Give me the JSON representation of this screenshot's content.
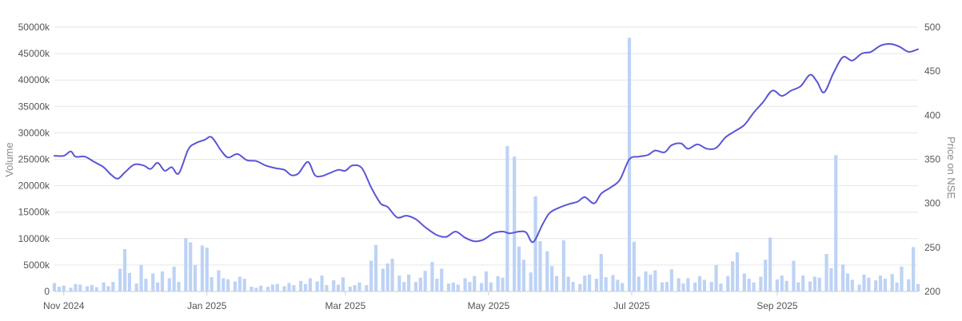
{
  "chart_data": {
    "type": "bar",
    "title": "",
    "xlabel": "",
    "ylabel": "Volume",
    "y2label": "Price on NSE",
    "grid": true,
    "legend": "none",
    "x_range": [
      "2024-10-28",
      "2025-10-31"
    ],
    "y_left": {
      "range": [
        0,
        50000
      ],
      "unit": "k",
      "ticks": [
        "0",
        "5000k",
        "10000k",
        "15000k",
        "20000k",
        "25000k",
        "30000k",
        "35000k",
        "40000k",
        "45000k",
        "50000k"
      ]
    },
    "y_right": {
      "range": [
        200,
        500
      ],
      "ticks": [
        "200",
        "250",
        "300",
        "350",
        "400",
        "450",
        "500"
      ]
    },
    "x_ticks": [
      {
        "date": "2024-11-01",
        "label": "Nov 2024"
      },
      {
        "date": "2025-01-01",
        "label": "Jan 2025"
      },
      {
        "date": "2025-03-01",
        "label": "Mar 2025"
      },
      {
        "date": "2025-05-01",
        "label": "May 2025"
      },
      {
        "date": "2025-07-01",
        "label": "Jul 2025"
      },
      {
        "date": "2025-09-01",
        "label": "Sep 2025"
      }
    ],
    "colors": {
      "volume": "#bdd3f5",
      "price": "#5b55d6",
      "grid": "#e6e6e6",
      "axis": "#cccccc"
    },
    "series": [
      {
        "name": "Volume",
        "axis": "left",
        "kind": "bar",
        "points": [
          [
            "2024-10-28",
            1600
          ],
          [
            "2024-10-30",
            900
          ],
          [
            "2024-11-01",
            1100
          ],
          [
            "2024-11-04",
            700
          ],
          [
            "2024-11-06",
            1400
          ],
          [
            "2024-11-08",
            1300
          ],
          [
            "2024-11-11",
            1000
          ],
          [
            "2024-11-13",
            1200
          ],
          [
            "2024-11-15",
            800
          ],
          [
            "2024-11-18",
            1700
          ],
          [
            "2024-11-20",
            1000
          ],
          [
            "2024-11-22",
            1800
          ],
          [
            "2024-11-25",
            4300
          ],
          [
            "2024-11-27",
            8000
          ],
          [
            "2024-11-29",
            3500
          ],
          [
            "2024-12-02",
            1500
          ],
          [
            "2024-12-04",
            5000
          ],
          [
            "2024-12-06",
            2400
          ],
          [
            "2024-12-09",
            3400
          ],
          [
            "2024-12-11",
            1700
          ],
          [
            "2024-12-13",
            3800
          ],
          [
            "2024-12-16",
            2500
          ],
          [
            "2024-12-18",
            4700
          ],
          [
            "2024-12-20",
            1800
          ],
          [
            "2024-12-23",
            10100
          ],
          [
            "2024-12-25",
            9300
          ],
          [
            "2024-12-27",
            5000
          ],
          [
            "2024-12-30",
            8700
          ],
          [
            "2025-01-01",
            8300
          ],
          [
            "2025-01-03",
            2700
          ],
          [
            "2025-01-06",
            4000
          ],
          [
            "2025-01-08",
            2500
          ],
          [
            "2025-01-10",
            2300
          ],
          [
            "2025-01-13",
            1900
          ],
          [
            "2025-01-15",
            2800
          ],
          [
            "2025-01-17",
            2400
          ],
          [
            "2025-01-20",
            900
          ],
          [
            "2025-01-22",
            700
          ],
          [
            "2025-01-24",
            1100
          ],
          [
            "2025-01-27",
            900
          ],
          [
            "2025-01-29",
            1300
          ],
          [
            "2025-01-31",
            1400
          ],
          [
            "2025-02-03",
            1000
          ],
          [
            "2025-02-05",
            1600
          ],
          [
            "2025-02-07",
            1200
          ],
          [
            "2025-02-10",
            2000
          ],
          [
            "2025-02-12",
            1400
          ],
          [
            "2025-02-14",
            2500
          ],
          [
            "2025-02-17",
            1900
          ],
          [
            "2025-02-19",
            3000
          ],
          [
            "2025-02-21",
            1200
          ],
          [
            "2025-02-24",
            2100
          ],
          [
            "2025-02-26",
            1300
          ],
          [
            "2025-02-28",
            2700
          ],
          [
            "2025-03-03",
            900
          ],
          [
            "2025-03-05",
            1200
          ],
          [
            "2025-03-07",
            1700
          ],
          [
            "2025-03-10",
            1200
          ],
          [
            "2025-03-12",
            5800
          ],
          [
            "2025-03-14",
            8800
          ],
          [
            "2025-03-17",
            4300
          ],
          [
            "2025-03-19",
            5300
          ],
          [
            "2025-03-21",
            6200
          ],
          [
            "2025-03-24",
            3000
          ],
          [
            "2025-03-26",
            1800
          ],
          [
            "2025-03-28",
            3200
          ],
          [
            "2025-03-31",
            1800
          ],
          [
            "2025-04-02",
            2600
          ],
          [
            "2025-04-04",
            3900
          ],
          [
            "2025-04-07",
            5600
          ],
          [
            "2025-04-09",
            2400
          ],
          [
            "2025-04-11",
            4300
          ],
          [
            "2025-04-14",
            1500
          ],
          [
            "2025-04-16",
            1700
          ],
          [
            "2025-04-18",
            1300
          ],
          [
            "2025-04-21",
            2500
          ],
          [
            "2025-04-23",
            1800
          ],
          [
            "2025-04-25",
            2900
          ],
          [
            "2025-04-28",
            1600
          ],
          [
            "2025-04-30",
            3800
          ],
          [
            "2025-05-02",
            1700
          ],
          [
            "2025-05-05",
            2900
          ],
          [
            "2025-05-07",
            2600
          ],
          [
            "2025-05-09",
            27500
          ],
          [
            "2025-05-12",
            25500
          ],
          [
            "2025-05-14",
            8500
          ],
          [
            "2025-05-16",
            6000
          ],
          [
            "2025-05-19",
            3600
          ],
          [
            "2025-05-21",
            18000
          ],
          [
            "2025-05-23",
            9500
          ],
          [
            "2025-05-26",
            7600
          ],
          [
            "2025-05-28",
            4800
          ],
          [
            "2025-05-30",
            2900
          ],
          [
            "2025-06-02",
            9700
          ],
          [
            "2025-06-04",
            2800
          ],
          [
            "2025-06-06",
            1800
          ],
          [
            "2025-06-09",
            1400
          ],
          [
            "2025-06-11",
            3000
          ],
          [
            "2025-06-13",
            3200
          ],
          [
            "2025-06-16",
            2400
          ],
          [
            "2025-06-18",
            7100
          ],
          [
            "2025-06-20",
            2700
          ],
          [
            "2025-06-23",
            3100
          ],
          [
            "2025-06-25",
            2200
          ],
          [
            "2025-06-27",
            1600
          ],
          [
            "2025-06-30",
            48000
          ],
          [
            "2025-07-02",
            9400
          ],
          [
            "2025-07-04",
            2800
          ],
          [
            "2025-07-07",
            3800
          ],
          [
            "2025-07-09",
            3200
          ],
          [
            "2025-07-11",
            4000
          ],
          [
            "2025-07-14",
            1700
          ],
          [
            "2025-07-16",
            1800
          ],
          [
            "2025-07-18",
            4200
          ],
          [
            "2025-07-21",
            2500
          ],
          [
            "2025-07-23",
            1500
          ],
          [
            "2025-07-25",
            2500
          ],
          [
            "2025-07-28",
            1700
          ],
          [
            "2025-07-30",
            2900
          ],
          [
            "2025-08-01",
            2200
          ],
          [
            "2025-08-04",
            1800
          ],
          [
            "2025-08-06",
            5000
          ],
          [
            "2025-08-08",
            1500
          ],
          [
            "2025-08-11",
            2900
          ],
          [
            "2025-08-13",
            5700
          ],
          [
            "2025-08-15",
            7400
          ],
          [
            "2025-08-18",
            3400
          ],
          [
            "2025-08-20",
            2400
          ],
          [
            "2025-08-22",
            1700
          ],
          [
            "2025-08-25",
            2800
          ],
          [
            "2025-08-27",
            6000
          ],
          [
            "2025-08-29",
            10200
          ],
          [
            "2025-09-01",
            2300
          ],
          [
            "2025-09-03",
            3000
          ],
          [
            "2025-09-05",
            2000
          ],
          [
            "2025-09-08",
            5800
          ],
          [
            "2025-09-10",
            1700
          ],
          [
            "2025-09-12",
            3000
          ],
          [
            "2025-09-15",
            1900
          ],
          [
            "2025-09-17",
            2800
          ],
          [
            "2025-09-19",
            2600
          ],
          [
            "2025-09-22",
            7100
          ],
          [
            "2025-09-24",
            4400
          ],
          [
            "2025-09-26",
            25800
          ],
          [
            "2025-09-29",
            5100
          ],
          [
            "2025-10-01",
            3400
          ],
          [
            "2025-10-03",
            2200
          ],
          [
            "2025-10-06",
            1300
          ],
          [
            "2025-10-08",
            3200
          ],
          [
            "2025-10-10",
            2600
          ],
          [
            "2025-10-13",
            2100
          ],
          [
            "2025-10-15",
            3000
          ],
          [
            "2025-10-17",
            2400
          ],
          [
            "2025-10-20",
            3300
          ],
          [
            "2025-10-22",
            1700
          ],
          [
            "2025-10-24",
            4700
          ],
          [
            "2025-10-27",
            2300
          ],
          [
            "2025-10-29",
            8400
          ],
          [
            "2025-10-31",
            1400
          ]
        ]
      },
      {
        "name": "Price on NSE",
        "axis": "right",
        "kind": "line",
        "points": [
          [
            "2024-10-28",
            354
          ],
          [
            "2024-11-01",
            354
          ],
          [
            "2024-11-04",
            359
          ],
          [
            "2024-11-06",
            353
          ],
          [
            "2024-11-10",
            353
          ],
          [
            "2024-11-14",
            347
          ],
          [
            "2024-11-18",
            341
          ],
          [
            "2024-11-21",
            333
          ],
          [
            "2024-11-24",
            328
          ],
          [
            "2024-11-27",
            335
          ],
          [
            "2024-12-01",
            344
          ],
          [
            "2024-12-05",
            343
          ],
          [
            "2024-12-08",
            339
          ],
          [
            "2024-12-11",
            346
          ],
          [
            "2024-12-14",
            337
          ],
          [
            "2024-12-17",
            341
          ],
          [
            "2024-12-20",
            334
          ],
          [
            "2024-12-24",
            361
          ],
          [
            "2024-12-27",
            368
          ],
          [
            "2024-12-31",
            372
          ],
          [
            "2025-01-03",
            375
          ],
          [
            "2025-01-07",
            360
          ],
          [
            "2025-01-10",
            352
          ],
          [
            "2025-01-14",
            356
          ],
          [
            "2025-01-18",
            349
          ],
          [
            "2025-01-22",
            348
          ],
          [
            "2025-01-26",
            343
          ],
          [
            "2025-01-30",
            340
          ],
          [
            "2025-02-03",
            338
          ],
          [
            "2025-02-06",
            332
          ],
          [
            "2025-02-09",
            334
          ],
          [
            "2025-02-13",
            347
          ],
          [
            "2025-02-16",
            332
          ],
          [
            "2025-02-19",
            331
          ],
          [
            "2025-02-22",
            334
          ],
          [
            "2025-02-26",
            338
          ],
          [
            "2025-03-01",
            337
          ],
          [
            "2025-03-04",
            343
          ],
          [
            "2025-03-08",
            340
          ],
          [
            "2025-03-12",
            318
          ],
          [
            "2025-03-16",
            300
          ],
          [
            "2025-03-19",
            296
          ],
          [
            "2025-03-23",
            284
          ],
          [
            "2025-03-27",
            286
          ],
          [
            "2025-03-31",
            282
          ],
          [
            "2025-04-04",
            273
          ],
          [
            "2025-04-09",
            264
          ],
          [
            "2025-04-13",
            262
          ],
          [
            "2025-04-17",
            268
          ],
          [
            "2025-04-21",
            261
          ],
          [
            "2025-04-25",
            257
          ],
          [
            "2025-04-29",
            259
          ],
          [
            "2025-05-03",
            266
          ],
          [
            "2025-05-07",
            268
          ],
          [
            "2025-05-10",
            266
          ],
          [
            "2025-05-14",
            268
          ],
          [
            "2025-05-17",
            267
          ],
          [
            "2025-05-20",
            256
          ],
          [
            "2025-05-24",
            276
          ],
          [
            "2025-05-27",
            289
          ],
          [
            "2025-05-31",
            295
          ],
          [
            "2025-06-04",
            299
          ],
          [
            "2025-06-08",
            302
          ],
          [
            "2025-06-11",
            307
          ],
          [
            "2025-06-15",
            300
          ],
          [
            "2025-06-18",
            311
          ],
          [
            "2025-06-22",
            318
          ],
          [
            "2025-06-26",
            327
          ],
          [
            "2025-06-30",
            350
          ],
          [
            "2025-07-04",
            353
          ],
          [
            "2025-07-08",
            355
          ],
          [
            "2025-07-11",
            360
          ],
          [
            "2025-07-15",
            358
          ],
          [
            "2025-07-18",
            366
          ],
          [
            "2025-07-22",
            368
          ],
          [
            "2025-07-25",
            362
          ],
          [
            "2025-07-29",
            367
          ],
          [
            "2025-08-02",
            362
          ],
          [
            "2025-08-06",
            363
          ],
          [
            "2025-08-10",
            375
          ],
          [
            "2025-08-14",
            382
          ],
          [
            "2025-08-18",
            389
          ],
          [
            "2025-08-22",
            403
          ],
          [
            "2025-08-26",
            415
          ],
          [
            "2025-08-30",
            428
          ],
          [
            "2025-09-03",
            422
          ],
          [
            "2025-09-07",
            428
          ],
          [
            "2025-09-11",
            433
          ],
          [
            "2025-09-15",
            446
          ],
          [
            "2025-09-18",
            438
          ],
          [
            "2025-09-21",
            426
          ],
          [
            "2025-09-25",
            448
          ],
          [
            "2025-09-29",
            466
          ],
          [
            "2025-10-03",
            462
          ],
          [
            "2025-10-07",
            470
          ],
          [
            "2025-10-11",
            472
          ],
          [
            "2025-10-15",
            479
          ],
          [
            "2025-10-19",
            481
          ],
          [
            "2025-10-23",
            478
          ],
          [
            "2025-10-27",
            472
          ],
          [
            "2025-10-31",
            475
          ]
        ]
      }
    ]
  }
}
